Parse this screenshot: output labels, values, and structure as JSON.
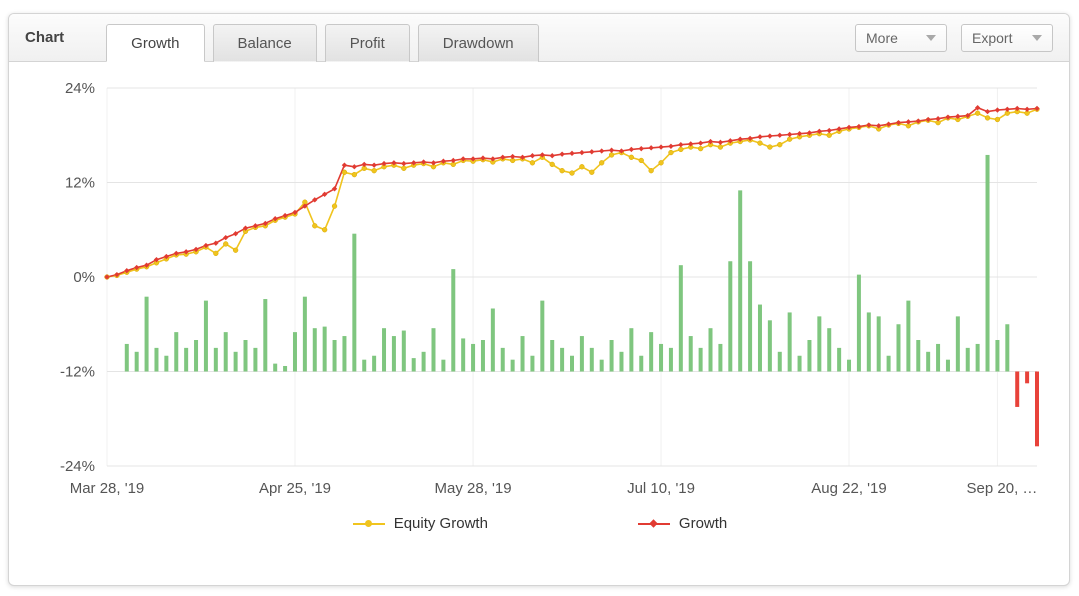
{
  "header": {
    "title": "Chart",
    "tabs": [
      {
        "label": "Growth",
        "active": true
      },
      {
        "label": "Balance",
        "active": false
      },
      {
        "label": "Profit",
        "active": false
      },
      {
        "label": "Drawdown",
        "active": false
      }
    ],
    "more_label": "More",
    "export_label": "Export"
  },
  "legend": [
    {
      "label": "Equity Growth",
      "color": "#f0c41e",
      "marker": "circle"
    },
    {
      "label": "Growth",
      "color": "#e13b32",
      "marker": "diamond"
    }
  ],
  "chart_data": {
    "type": "line+bar",
    "title": "Growth",
    "ylim": [
      -24,
      24
    ],
    "y_tick_values": [
      24,
      12,
      0,
      -12,
      -24
    ],
    "y_tick_labels": [
      "24%",
      "12%",
      "0%",
      "-12%",
      "-24%"
    ],
    "x_tick_indices": [
      0,
      19,
      37,
      56,
      75,
      90
    ],
    "x_tick_labels": [
      "Mar 28, '19",
      "Apr 25, '19",
      "May 28, '19",
      "Jul 10, '19",
      "Aug 22, '19",
      "Sep 20, …"
    ],
    "grid": true,
    "legend_position": "bottom",
    "series": [
      {
        "name": "Equity Growth",
        "color": "#f0c41e",
        "marker": "circle",
        "values": [
          0,
          0.2,
          0.6,
          1.0,
          1.3,
          1.8,
          2.3,
          2.8,
          2.9,
          3.2,
          3.8,
          3.0,
          4.2,
          3.4,
          5.8,
          6.3,
          6.5,
          7.2,
          7.6,
          8.0,
          9.5,
          6.5,
          6.0,
          9.0,
          13.3,
          13.0,
          13.8,
          13.5,
          14.0,
          14.2,
          13.8,
          14.2,
          14.4,
          14.0,
          14.5,
          14.3,
          14.8,
          14.7,
          14.9,
          14.6,
          15.0,
          14.8,
          15.0,
          14.5,
          15.2,
          14.3,
          13.5,
          13.2,
          14.0,
          13.3,
          14.5,
          15.5,
          15.8,
          15.2,
          14.8,
          13.5,
          14.5,
          15.8,
          16.2,
          16.5,
          16.3,
          16.8,
          16.5,
          17.0,
          17.2,
          17.4,
          17.0,
          16.5,
          16.8,
          17.5,
          17.8,
          18.0,
          18.2,
          18.0,
          18.5,
          18.8,
          19.0,
          19.2,
          18.8,
          19.3,
          19.5,
          19.2,
          19.7,
          19.9,
          19.6,
          20.2,
          20.0,
          20.4,
          20.8,
          20.2,
          20.0,
          20.8,
          21.0,
          20.8,
          21.3
        ]
      },
      {
        "name": "Growth",
        "color": "#e13b32",
        "marker": "diamond",
        "values": [
          0,
          0.3,
          0.8,
          1.2,
          1.5,
          2.2,
          2.6,
          3.0,
          3.2,
          3.5,
          4.0,
          4.3,
          5.0,
          5.5,
          6.2,
          6.5,
          6.8,
          7.4,
          7.8,
          8.2,
          9.0,
          9.8,
          10.5,
          11.2,
          14.2,
          14.0,
          14.3,
          14.2,
          14.4,
          14.5,
          14.4,
          14.5,
          14.6,
          14.5,
          14.7,
          14.8,
          15.0,
          15.0,
          15.1,
          15.0,
          15.2,
          15.3,
          15.2,
          15.4,
          15.5,
          15.4,
          15.6,
          15.7,
          15.8,
          15.9,
          16.0,
          16.1,
          16.0,
          16.2,
          16.3,
          16.4,
          16.5,
          16.6,
          16.8,
          16.9,
          17.0,
          17.2,
          17.1,
          17.3,
          17.5,
          17.6,
          17.8,
          17.9,
          18.0,
          18.1,
          18.2,
          18.3,
          18.5,
          18.6,
          18.8,
          19.0,
          19.1,
          19.3,
          19.2,
          19.4,
          19.6,
          19.7,
          19.8,
          20.0,
          20.1,
          20.3,
          20.4,
          20.5,
          21.5,
          21.0,
          21.2,
          21.3,
          21.4,
          21.3,
          21.4
        ]
      }
    ],
    "bars": {
      "baseline": -12,
      "positive_color": "#7fc67f",
      "negative_color": "#e8423a",
      "values": [
        null,
        null,
        -8.5,
        -9.5,
        -2.5,
        -9.0,
        -10.0,
        -7.0,
        -9.0,
        -8.0,
        -3.0,
        -9.0,
        -7.0,
        -9.5,
        -8.0,
        -9.0,
        -2.8,
        -11.0,
        -11.3,
        -7.0,
        -2.5,
        -6.5,
        -6.3,
        -8.0,
        -7.5,
        5.5,
        -10.5,
        -10.0,
        -6.5,
        -7.5,
        -6.8,
        -10.3,
        -9.5,
        -6.5,
        -10.5,
        1.0,
        -7.8,
        -8.5,
        -8.0,
        -4.0,
        -9.0,
        -10.5,
        -7.5,
        -10.0,
        -3.0,
        -8.0,
        -9.0,
        -10.0,
        -7.5,
        -9.0,
        -10.5,
        -8.0,
        -9.5,
        -6.5,
        -10.0,
        -7.0,
        -8.5,
        -9.0,
        1.5,
        -7.5,
        -9.0,
        -6.5,
        -8.5,
        2.0,
        11.0,
        2.0,
        -3.5,
        -5.5,
        -9.5,
        -4.5,
        -10.0,
        -8.0,
        -5.0,
        -6.5,
        -9.0,
        -10.5,
        0.3,
        -4.5,
        -5.0,
        -10.0,
        -6.0,
        -3.0,
        -8.0,
        -9.5,
        -8.5,
        -10.5,
        -5.0,
        -9.0,
        -8.5,
        15.5,
        -8.0,
        -6.0,
        -16.5,
        -13.5,
        -21.5
      ]
    }
  }
}
